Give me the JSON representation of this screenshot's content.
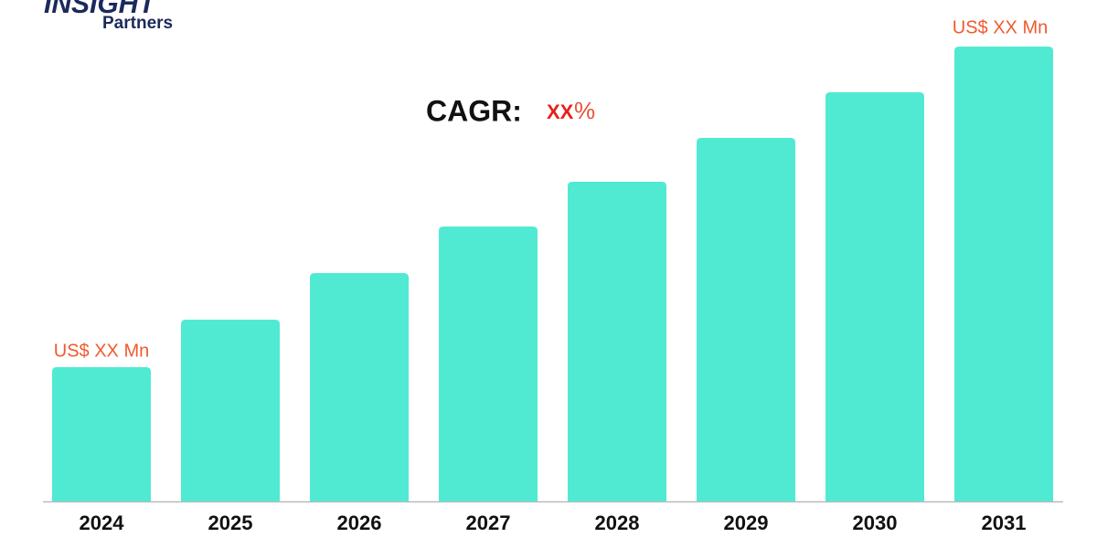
{
  "logo": {
    "brand": "INSIGHT",
    "sub": "Partners"
  },
  "chart_data": {
    "type": "bar",
    "categories": [
      "2024",
      "2025",
      "2026",
      "2027",
      "2028",
      "2029",
      "2030",
      "2031"
    ],
    "values": [
      147,
      199,
      250,
      301,
      350,
      398,
      448,
      498
    ],
    "color": "#50ead3",
    "start_label": "US$ XX Mn",
    "end_label": "US$ XX Mn",
    "cagr": {
      "label": "CAGR:",
      "value": "XX",
      "unit": "%"
    }
  }
}
